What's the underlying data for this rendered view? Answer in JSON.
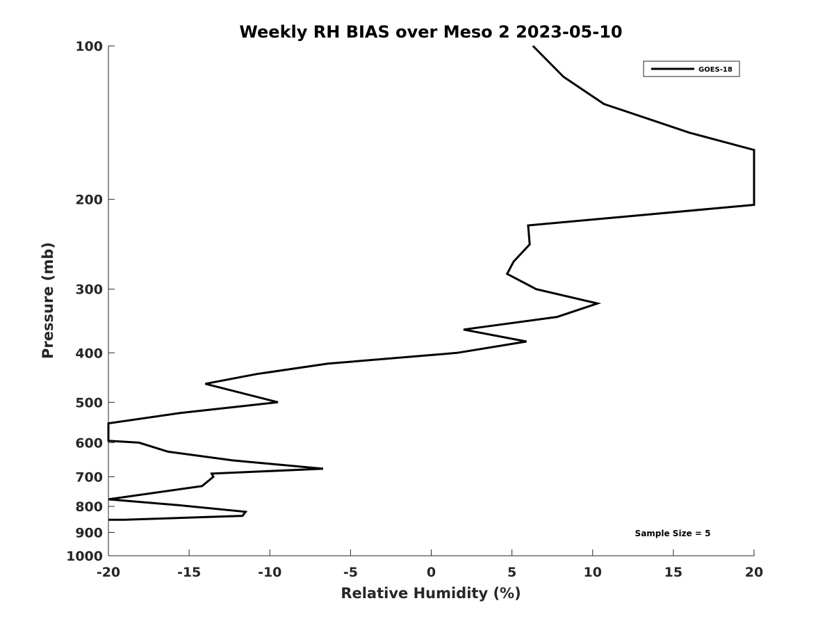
{
  "chart_data": {
    "type": "line",
    "title": "Weekly RH BIAS over Meso 2 2023-05-10",
    "xlabel": "Relative Humidity (%)",
    "ylabel": "Pressure (mb)",
    "xlim": [
      -20,
      20
    ],
    "ylim": [
      1000,
      100
    ],
    "yscale": "log",
    "y_reversed": true,
    "x_ticks": [
      -20,
      -15,
      -10,
      -5,
      0,
      5,
      10,
      15,
      20
    ],
    "x_tick_labels": [
      "-20",
      "-15",
      "-10",
      "-5",
      "0",
      "5",
      "10",
      "15",
      "20"
    ],
    "y_ticks": [
      100,
      200,
      300,
      400,
      500,
      600,
      700,
      800,
      900,
      1000
    ],
    "y_tick_labels": [
      "100",
      "200",
      "300",
      "400",
      "500",
      "600",
      "700",
      "800",
      "900",
      "1000"
    ],
    "grid": false,
    "legend_position": "top-right",
    "annotation": "Sample Size = 5",
    "series": [
      {
        "name": "GOES-18",
        "color": "#000000",
        "x": [
          6.3,
          8.2,
          10.7,
          16.0,
          20.0,
          20.0,
          6.0,
          6.1,
          5.1,
          4.7,
          6.5,
          10.3,
          7.8,
          2.0,
          5.9,
          1.6,
          -6.4,
          -10.8,
          -14.0,
          -9.5,
          -15.6,
          -20.0,
          -20.0,
          -18.1,
          -16.3,
          -12.3,
          -6.7,
          -13.6,
          -13.5,
          -14.2,
          -20.0,
          -15.8,
          -11.5,
          -11.7,
          -19.0,
          -20.0
        ],
        "y": [
          100,
          115,
          130,
          148,
          160,
          205,
          225,
          245,
          265,
          280,
          300,
          320,
          340,
          360,
          380,
          400,
          420,
          440,
          460,
          500,
          525,
          550,
          595,
          600,
          625,
          650,
          675,
          690,
          700,
          730,
          775,
          795,
          820,
          835,
          850,
          850
        ]
      }
    ]
  }
}
